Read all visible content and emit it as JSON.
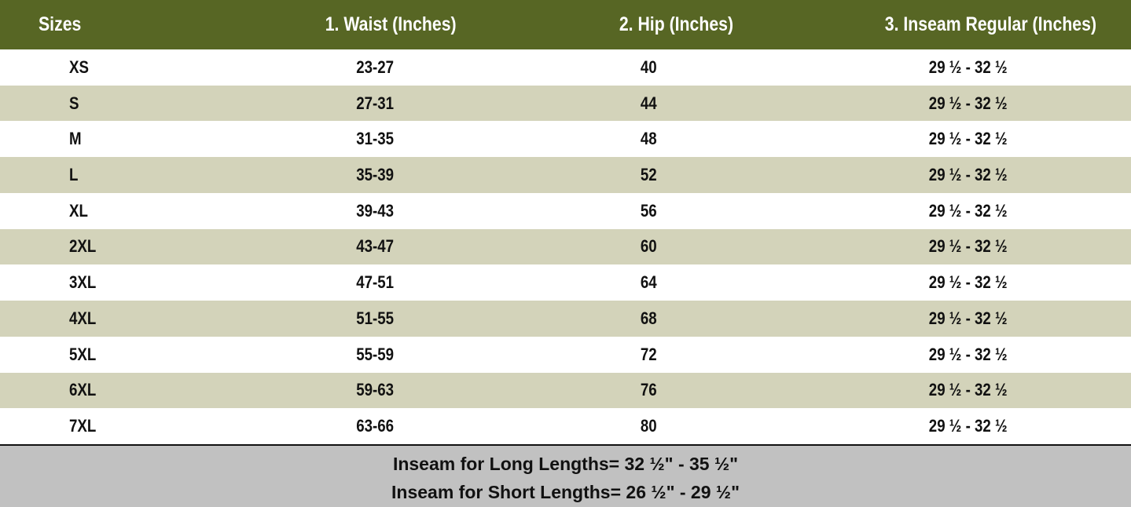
{
  "table": {
    "header": [
      "Sizes",
      "1. Waist (Inches)",
      "2. Hip (Inches)",
      "3. Inseam Regular (Inches)"
    ],
    "rows": [
      [
        "XS",
        "23-27",
        "40",
        "29 ½ - 32 ½"
      ],
      [
        "S",
        "27-31",
        "44",
        "29 ½ - 32 ½"
      ],
      [
        "M",
        "31-35",
        "48",
        "29 ½ - 32 ½"
      ],
      [
        "L",
        "35-39",
        "52",
        "29 ½ - 32 ½"
      ],
      [
        "XL",
        "39-43",
        "56",
        "29 ½ - 32 ½"
      ],
      [
        "2XL",
        "43-47",
        "60",
        "29 ½ - 32 ½"
      ],
      [
        "3XL",
        "47-51",
        "64",
        "29 ½ - 32 ½"
      ],
      [
        "4XL",
        "51-55",
        "68",
        "29 ½ - 32 ½"
      ],
      [
        "5XL",
        "55-59",
        "72",
        "29 ½ - 32 ½"
      ],
      [
        "6XL",
        "59-63",
        "76",
        "29 ½ - 32 ½"
      ],
      [
        "7XL",
        "63-66",
        "80",
        "29 ½ - 32 ½"
      ]
    ]
  },
  "footer": [
    "Inseam for Long Lengths= 32 ½\" - 35 ½\"",
    "Inseam for Short Lengths= 26 ½\" - 29 ½\""
  ]
}
